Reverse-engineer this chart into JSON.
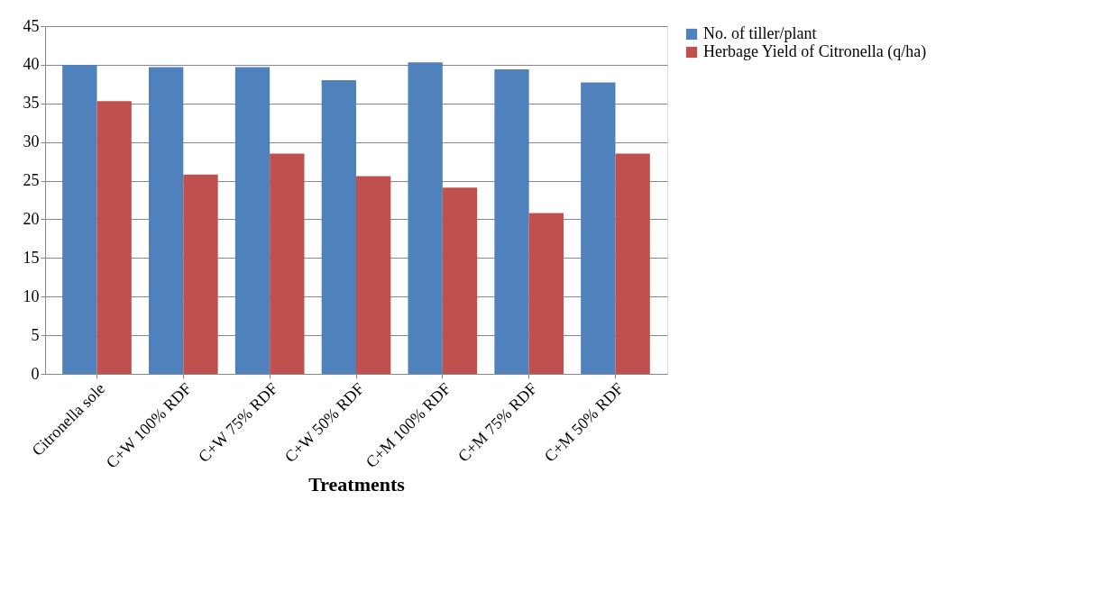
{
  "chart_data": {
    "type": "bar",
    "xlabel": "Treatments",
    "categories": [
      "Citronella sole",
      "C+W 100% RDF",
      "C+W 75% RDF",
      "C+W 50% RDF",
      "C+M 100% RDF",
      "C+M 75% RDF",
      "C+M 50% RDF"
    ],
    "series": [
      {
        "name": "No. of tiller/plant",
        "color": "#4f81bd",
        "values": [
          40.0,
          39.7,
          39.7,
          38.0,
          40.3,
          39.4,
          37.7
        ]
      },
      {
        "name": "Herbage Yield of Citronella (q/ha)",
        "color": "#c0504d",
        "values": [
          35.3,
          25.8,
          28.5,
          25.6,
          24.1,
          20.8,
          28.5
        ]
      }
    ],
    "ylim": [
      0,
      45
    ],
    "yticks": [
      0,
      5,
      10,
      15,
      20,
      25,
      30,
      35,
      40,
      45
    ],
    "grid": "y",
    "legend": "right"
  }
}
